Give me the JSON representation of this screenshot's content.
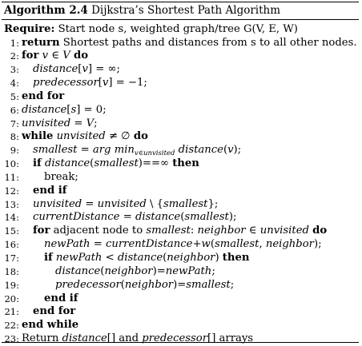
{
  "caption": {
    "label": "Algorithm 2.4",
    "title": "Dijkstra’s Shortest Path Algorithm"
  },
  "require": {
    "keyword": "Require:",
    "text": "Start node s, weighted graph/tree G(V, E, W)"
  },
  "lines": [
    {
      "num": "1:",
      "indent": 0,
      "parts": [
        {
          "t": "return",
          "s": "kw"
        },
        {
          "t": " Shortest paths and distances from s to all other nodes."
        }
      ]
    },
    {
      "num": "2:",
      "indent": 0,
      "parts": [
        {
          "t": "for",
          "s": "kw"
        },
        {
          "t": " "
        },
        {
          "t": "v",
          "s": "i"
        },
        {
          "t": " ∈ "
        },
        {
          "t": "V",
          "s": "i"
        },
        {
          "t": " "
        },
        {
          "t": "do",
          "s": "kw"
        }
      ]
    },
    {
      "num": "3:",
      "indent": 1,
      "parts": [
        {
          "t": "distance",
          "s": "i"
        },
        {
          "t": "["
        },
        {
          "t": "v",
          "s": "i"
        },
        {
          "t": "] = ∞;"
        }
      ]
    },
    {
      "num": "4:",
      "indent": 1,
      "parts": [
        {
          "t": "predecessor",
          "s": "i"
        },
        {
          "t": "["
        },
        {
          "t": "v",
          "s": "i"
        },
        {
          "t": "] = −1;"
        }
      ]
    },
    {
      "num": "5:",
      "indent": 0,
      "parts": [
        {
          "t": "end for",
          "s": "kw"
        }
      ]
    },
    {
      "num": "6:",
      "indent": 0,
      "parts": [
        {
          "t": "distance",
          "s": "i"
        },
        {
          "t": "["
        },
        {
          "t": "s",
          "s": "i"
        },
        {
          "t": "] = 0;"
        }
      ]
    },
    {
      "num": "7:",
      "indent": 0,
      "parts": [
        {
          "t": "unvisited",
          "s": "i"
        },
        {
          "t": " = "
        },
        {
          "t": "V",
          "s": "i"
        },
        {
          "t": ";"
        }
      ]
    },
    {
      "num": "8:",
      "indent": 0,
      "parts": [
        {
          "t": "while",
          "s": "kw"
        },
        {
          "t": " "
        },
        {
          "t": "unvisited",
          "s": "i"
        },
        {
          "t": " ≠ ∅ "
        },
        {
          "t": "do",
          "s": "kw"
        }
      ]
    },
    {
      "num": "9:",
      "indent": 1,
      "parts": [
        {
          "t": "smallest",
          "s": "i"
        },
        {
          "t": " = "
        },
        {
          "t": "arg min",
          "s": "i"
        },
        {
          "t": "v∈unvisited",
          "s": "sub"
        },
        {
          "t": " "
        },
        {
          "t": "distance",
          "s": "i"
        },
        {
          "t": "("
        },
        {
          "t": "v",
          "s": "i"
        },
        {
          "t": ");"
        }
      ]
    },
    {
      "num": "10:",
      "indent": 1,
      "parts": [
        {
          "t": "if",
          "s": "kw"
        },
        {
          "t": " "
        },
        {
          "t": "distance",
          "s": "i"
        },
        {
          "t": "("
        },
        {
          "t": "smallest",
          "s": "i"
        },
        {
          "t": ")==∞ "
        },
        {
          "t": "then",
          "s": "kw"
        }
      ]
    },
    {
      "num": "11:",
      "indent": 2,
      "parts": [
        {
          "t": "break;"
        }
      ]
    },
    {
      "num": "12:",
      "indent": 1,
      "parts": [
        {
          "t": "end if",
          "s": "kw"
        }
      ]
    },
    {
      "num": "13:",
      "indent": 1,
      "parts": [
        {
          "t": "unvisited",
          "s": "i"
        },
        {
          "t": " = "
        },
        {
          "t": "unvisited",
          "s": "i"
        },
        {
          "t": " \\ {"
        },
        {
          "t": "smallest",
          "s": "i"
        },
        {
          "t": "};"
        }
      ]
    },
    {
      "num": "14:",
      "indent": 1,
      "parts": [
        {
          "t": "currentDistance",
          "s": "i"
        },
        {
          "t": " = "
        },
        {
          "t": "distance",
          "s": "i"
        },
        {
          "t": "("
        },
        {
          "t": "smallest",
          "s": "i"
        },
        {
          "t": ");"
        }
      ]
    },
    {
      "num": "15:",
      "indent": 1,
      "parts": [
        {
          "t": "for",
          "s": "kw"
        },
        {
          "t": " adjacent node to "
        },
        {
          "t": "smallest",
          "s": "i"
        },
        {
          "t": ": "
        },
        {
          "t": "neighbor",
          "s": "i"
        },
        {
          "t": " ∈ "
        },
        {
          "t": "unvisited",
          "s": "i"
        },
        {
          "t": "  "
        },
        {
          "t": "do",
          "s": "kw"
        }
      ]
    },
    {
      "num": "16:",
      "indent": 2,
      "parts": [
        {
          "t": "newPath",
          "s": "i"
        },
        {
          "t": " = "
        },
        {
          "t": "currentDistance",
          "s": "i"
        },
        {
          "t": "+"
        },
        {
          "t": "w",
          "s": "i"
        },
        {
          "t": "("
        },
        {
          "t": "smallest",
          "s": "i"
        },
        {
          "t": ", "
        },
        {
          "t": "neighbor",
          "s": "i"
        },
        {
          "t": ");"
        }
      ]
    },
    {
      "num": "17:",
      "indent": 2,
      "parts": [
        {
          "t": "if",
          "s": "kw"
        },
        {
          "t": " "
        },
        {
          "t": "newPath",
          "s": "i"
        },
        {
          "t": " < "
        },
        {
          "t": "distance",
          "s": "i"
        },
        {
          "t": "("
        },
        {
          "t": "neighbor",
          "s": "i"
        },
        {
          "t": ") "
        },
        {
          "t": "then",
          "s": "kw"
        }
      ]
    },
    {
      "num": "18:",
      "indent": 3,
      "parts": [
        {
          "t": "distance",
          "s": "i"
        },
        {
          "t": "("
        },
        {
          "t": "neighbor",
          "s": "i"
        },
        {
          "t": ")="
        },
        {
          "t": "newPath",
          "s": "i"
        },
        {
          "t": ";"
        }
      ]
    },
    {
      "num": "19:",
      "indent": 3,
      "parts": [
        {
          "t": "predecessor",
          "s": "i"
        },
        {
          "t": "("
        },
        {
          "t": "neighbor",
          "s": "i"
        },
        {
          "t": ")="
        },
        {
          "t": "smallest",
          "s": "i"
        },
        {
          "t": ";"
        }
      ]
    },
    {
      "num": "20:",
      "indent": 2,
      "parts": [
        {
          "t": "end if",
          "s": "kw"
        }
      ]
    },
    {
      "num": "21:",
      "indent": 1,
      "parts": [
        {
          "t": "end for",
          "s": "kw"
        }
      ]
    },
    {
      "num": "22:",
      "indent": 0,
      "parts": [
        {
          "t": "end while",
          "s": "kw"
        }
      ]
    },
    {
      "num": "23:",
      "indent": 0,
      "parts": [
        {
          "t": "Return "
        },
        {
          "t": "distance",
          "s": "i"
        },
        {
          "t": "[] and "
        },
        {
          "t": "predecessor",
          "s": "i"
        },
        {
          "t": "[] arrays"
        }
      ]
    }
  ]
}
